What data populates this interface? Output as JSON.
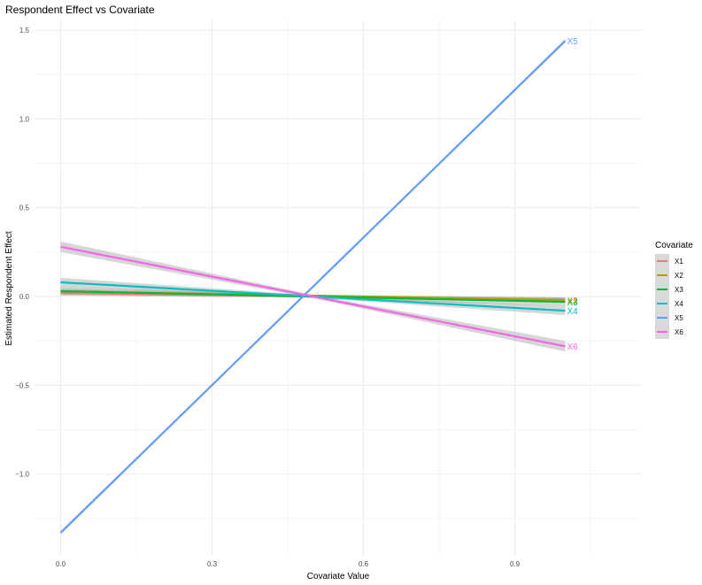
{
  "chart_data": {
    "type": "line",
    "title": "Respondent Effect vs Covariate",
    "xlabel": "Covariate Value",
    "ylabel": "Estimated Respondent Effect",
    "xlim": [
      -0.05,
      1.15
    ],
    "ylim": [
      -1.46,
      1.56
    ],
    "x_ticks": [
      "0.0",
      "0.3",
      "0.6",
      "0.9"
    ],
    "x_tick_values": [
      0.0,
      0.3,
      0.6,
      0.9
    ],
    "y_ticks": [
      "−1.0",
      "−0.5",
      "0.0",
      "0.5",
      "1.0",
      "1.5"
    ],
    "y_tick_values": [
      -1.0,
      -0.5,
      0.0,
      0.5,
      1.0,
      1.5
    ],
    "grid": true,
    "legend_title": "Covariate",
    "legend_position": "right",
    "series": [
      {
        "name": "X1",
        "color": "#F8766D",
        "x": [
          0,
          1
        ],
        "y": [
          0.02,
          -0.02
        ],
        "band": 0.012,
        "end_label": "X1"
      },
      {
        "name": "X2",
        "color": "#B79F00",
        "x": [
          0,
          1
        ],
        "y": [
          0.03,
          -0.02
        ],
        "band": 0.015,
        "end_label": "X2"
      },
      {
        "name": "X3",
        "color": "#00BA38",
        "x": [
          0,
          1
        ],
        "y": [
          0.03,
          -0.03
        ],
        "band": 0.025,
        "end_label": "X3"
      },
      {
        "name": "X4",
        "color": "#00BFC4",
        "x": [
          0,
          1
        ],
        "y": [
          0.08,
          -0.08
        ],
        "band": 0.025,
        "end_label": "X4"
      },
      {
        "name": "X5",
        "color": "#619CFF",
        "x": [
          0,
          1
        ],
        "y": [
          -1.33,
          1.44
        ],
        "band": 0.01,
        "end_label": "X5"
      },
      {
        "name": "X6",
        "color": "#F564E3",
        "x": [
          0,
          1
        ],
        "y": [
          0.28,
          -0.28
        ],
        "band": 0.03,
        "end_label": "X6"
      }
    ]
  }
}
